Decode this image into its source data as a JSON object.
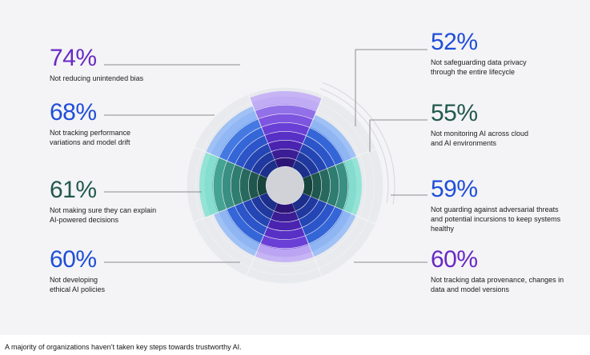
{
  "chart_data": {
    "type": "radial-bar",
    "series": [
      {
        "value": "74%",
        "label": "Not reducing unintended bias",
        "color": "#6929c4"
      },
      {
        "value": "52%",
        "label": "Not safeguarding data privacy through the entire lifecycle",
        "color": "#1f4ed8"
      },
      {
        "value": "55%",
        "label": "Not monitoring AI across cloud and AI environments",
        "color": "#22594f"
      },
      {
        "value": "59%",
        "label": "Not guarding against adversarial threats and potential incursions to keep systems healthy",
        "color": "#1f4ed8"
      },
      {
        "value": "60%",
        "label": "Not tracking data provenance, changes in data and model versions",
        "color": "#6929c4"
      },
      {
        "value": "60%",
        "label": "Not developing ethical AI policies",
        "color": "#1f4ed8"
      },
      {
        "value": "61%",
        "label": "Not making sure they can explain AI-powered decisions",
        "color": "#22594f"
      },
      {
        "value": "68%",
        "label": "Not tracking performance variations and model drift",
        "color": "#1f4ed8"
      }
    ]
  },
  "caption": "A majority of organizations haven’t taken key steps towards trustworthy AI."
}
